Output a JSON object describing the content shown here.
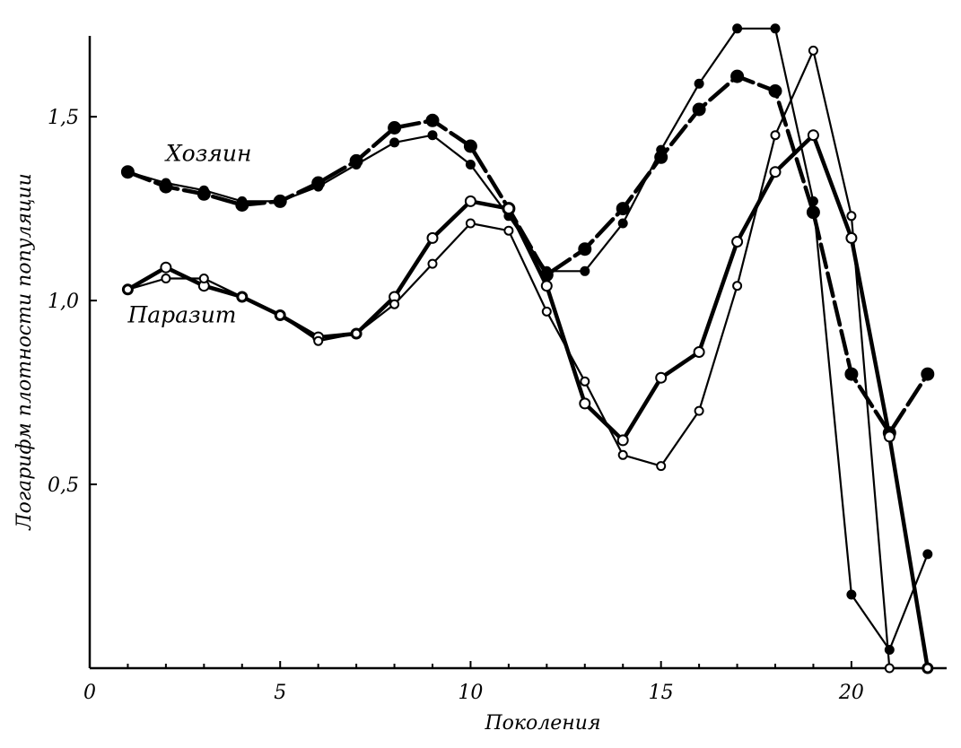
{
  "chart_data": {
    "type": "line",
    "title": "",
    "xlabel": "Поколения",
    "ylabel": "Логарифм плотности популяции",
    "xlim": [
      0,
      22.5
    ],
    "ylim": [
      0.0,
      1.72
    ],
    "xticks": [
      0,
      5,
      10,
      15,
      20
    ],
    "xtick_labels": [
      "0",
      "5",
      "10",
      "15",
      "20"
    ],
    "yticks": [
      0.5,
      1.0,
      1.5
    ],
    "ytick_labels": [
      "0,5",
      "1,0",
      "1,5"
    ],
    "grid": false,
    "legend": "none",
    "annotations": [
      {
        "text": "Хозяин",
        "x": 2.0,
        "y": 1.38
      },
      {
        "text": "Паразит",
        "x": 1.0,
        "y": 0.94
      }
    ],
    "series": [
      {
        "style": "thick-filled",
        "x": [
          1,
          2,
          3,
          4,
          5,
          6,
          7,
          8,
          9,
          10,
          11,
          12,
          13,
          14,
          15,
          16,
          17,
          18,
          19,
          20,
          21,
          22
        ],
        "values": [
          1.35,
          1.31,
          1.29,
          1.26,
          1.27,
          1.32,
          1.38,
          1.47,
          1.49,
          1.42,
          1.25,
          1.07,
          1.14,
          1.25,
          1.39,
          1.52,
          1.61,
          1.57,
          1.24,
          0.8,
          0.64,
          0.8
        ]
      },
      {
        "style": "thin-filled",
        "x": [
          1,
          2,
          3,
          4,
          5,
          6,
          7,
          8,
          9,
          10,
          11,
          12,
          13,
          14,
          15,
          16,
          17,
          18,
          19,
          20,
          21,
          22
        ],
        "values": [
          1.35,
          1.32,
          1.3,
          1.27,
          1.27,
          1.31,
          1.37,
          1.43,
          1.45,
          1.37,
          1.23,
          1.08,
          1.08,
          1.21,
          1.41,
          1.59,
          1.74,
          1.74,
          1.27,
          0.2,
          0.05,
          0.31
        ]
      },
      {
        "style": "thick-open",
        "x": [
          1,
          2,
          3,
          4,
          5,
          6,
          7,
          8,
          9,
          10,
          11,
          12,
          13,
          14,
          15,
          16,
          17,
          18,
          19,
          20,
          21,
          22
        ],
        "values": [
          1.03,
          1.09,
          1.04,
          1.01,
          0.96,
          0.9,
          0.91,
          1.01,
          1.17,
          1.27,
          1.25,
          1.04,
          0.72,
          0.62,
          0.79,
          0.86,
          1.16,
          1.35,
          1.45,
          1.17,
          0.63,
          0.0
        ]
      },
      {
        "style": "thin-open",
        "x": [
          1,
          2,
          3,
          4,
          5,
          6,
          7,
          8,
          9,
          10,
          11,
          12,
          13,
          14,
          15,
          16,
          17,
          18,
          19,
          20,
          21,
          22
        ],
        "values": [
          1.03,
          1.06,
          1.06,
          1.01,
          0.96,
          0.89,
          0.91,
          0.99,
          1.1,
          1.21,
          1.19,
          0.97,
          0.78,
          0.58,
          0.55,
          0.7,
          1.04,
          1.45,
          1.68,
          1.23,
          0.0,
          0.0
        ]
      }
    ]
  }
}
